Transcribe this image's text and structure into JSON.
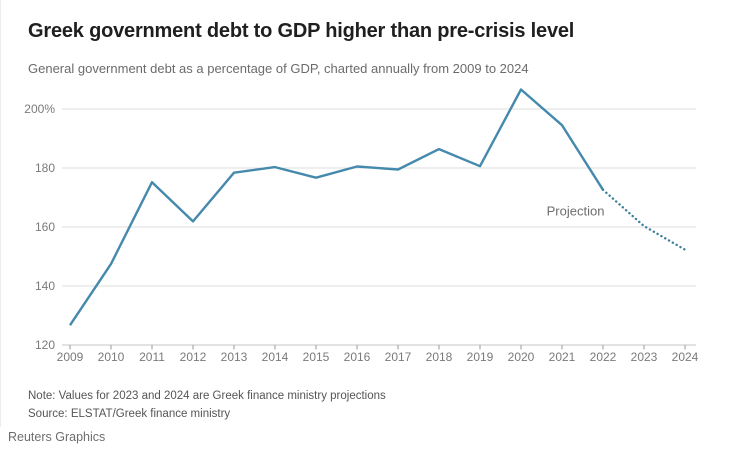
{
  "header": {
    "title": "Greek government debt to GDP higher than pre-crisis level",
    "subtitle": "General government debt as a percentage of GDP, charted annually from 2009 to 2024"
  },
  "chart_data": {
    "type": "line",
    "title": "Greek government debt to GDP higher than pre-crisis level",
    "xlabel": "",
    "ylabel": "General government debt as a percentage of GDP",
    "x": [
      2009,
      2010,
      2011,
      2012,
      2013,
      2014,
      2015,
      2016,
      2017,
      2018,
      2019,
      2020,
      2021,
      2022,
      2023,
      2024
    ],
    "xtick_labels": [
      "2009",
      "2010",
      "2011",
      "2012",
      "2013",
      "2014",
      "2015",
      "2016",
      "2017",
      "2018",
      "2019",
      "2020",
      "2021",
      "2022",
      "2023",
      "2024"
    ],
    "ylim": [
      120,
      210
    ],
    "yticks": [
      120,
      140,
      160,
      180,
      200
    ],
    "ytick_labels": [
      "120",
      "140",
      "160",
      "180",
      "200%"
    ],
    "grid": "horizontal",
    "legend": "none",
    "series": [
      {
        "name": "General government debt (% of GDP), actual",
        "style": "solid",
        "color": "#4589ac",
        "x": [
          2009,
          2010,
          2011,
          2012,
          2013,
          2014,
          2015,
          2016,
          2017,
          2018,
          2019,
          2020,
          2021,
          2022
        ],
        "values": [
          126.7,
          147.5,
          175.2,
          161.9,
          178.4,
          180.3,
          176.7,
          180.5,
          179.5,
          186.4,
          180.6,
          206.6,
          194.5,
          172.6
        ]
      },
      {
        "name": "Greek finance ministry projection",
        "style": "dotted",
        "color": "#3e7f9d",
        "x": [
          2022,
          2023,
          2024
        ],
        "values": [
          172.6,
          160.3,
          152.3
        ]
      }
    ],
    "annotation": {
      "text": "Projection",
      "x": 2021.33,
      "y": 165.3
    }
  },
  "footer": {
    "note": "Note: Values for 2023 and 2024 are Greek finance ministry projections",
    "source": "Source: ELSTAT/Greek finance ministry",
    "credit": "Reuters Graphics"
  },
  "colors": {
    "title_text": "#1f1f1f",
    "subtitle_text": "#6b6b6b",
    "grid": "#dcdcdc",
    "baseline": "#c6c6c6",
    "tick": "#999999",
    "axis_text": "#7a7a7a",
    "annotation_text": "#6e6e6e",
    "line": "#4589ac",
    "projection_line": "#3e7f9d"
  }
}
